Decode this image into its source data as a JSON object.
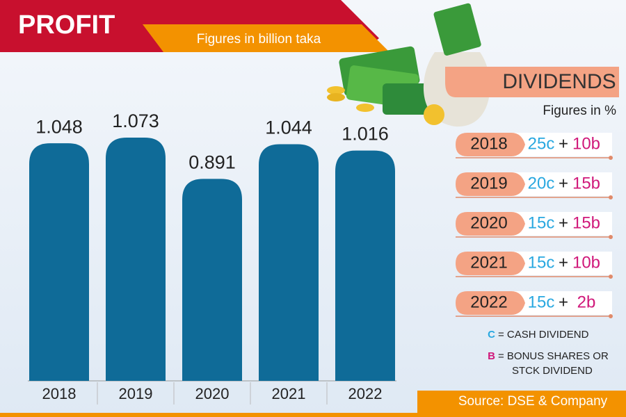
{
  "header": {
    "title": "PROFIT",
    "subtitle": "Figures in billion taka"
  },
  "chart_data": {
    "type": "bar",
    "categories": [
      "2018",
      "2019",
      "2020",
      "2021",
      "2022"
    ],
    "values": [
      1.048,
      1.073,
      0.891,
      1.044,
      1.016
    ],
    "color": "#0f6b98"
  },
  "dividends": {
    "title": "DIVIDENDS",
    "subtitle": "Figures in %",
    "plus": "+",
    "rows": [
      {
        "year": "2018",
        "cash": "25c",
        "bonus": "10b"
      },
      {
        "year": "2019",
        "cash": "20c",
        "bonus": "15b"
      },
      {
        "year": "2020",
        "cash": "15c",
        "bonus": "15b"
      },
      {
        "year": "2021",
        "cash": "15c",
        "bonus": "10b"
      },
      {
        "year": "2022",
        "cash": "15c",
        "bonus": "2b"
      }
    ],
    "legend": [
      {
        "key": "C",
        "text": "= CASH DIVIDEND"
      },
      {
        "key": "B",
        "text": "= BONUS SHARES OR",
        "text2": "STCK DIVIDEND"
      }
    ]
  },
  "source": "Source: DSE & Company"
}
